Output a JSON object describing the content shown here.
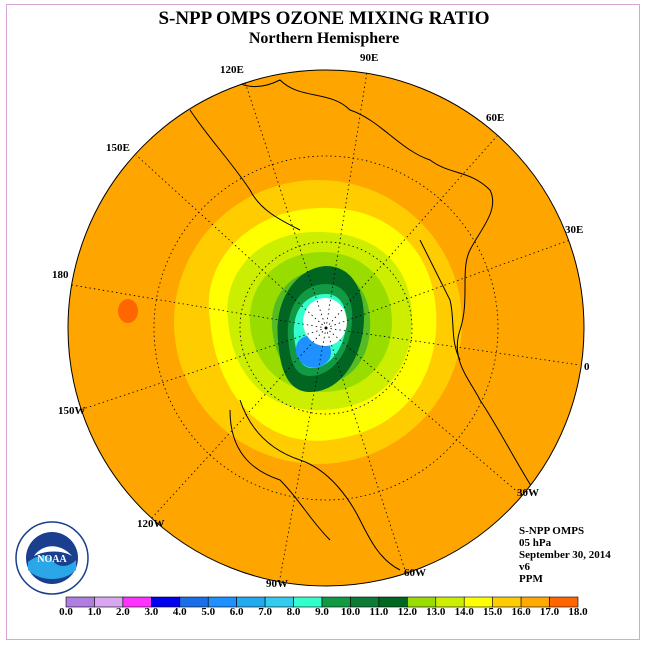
{
  "title": "S-NPP OMPS OZONE MIXING RATIO",
  "subtitle": "Northern Hemisphere",
  "meridian_labels": [
    "90E",
    "60E",
    "30E",
    "0",
    "30W",
    "60W",
    "90W",
    "120W",
    "150W",
    "180",
    "150E",
    "120E"
  ],
  "info": {
    "instrument": "S-NPP OMPS",
    "pressure": "05 hPa",
    "date": "September 30, 2014",
    "version": "v6",
    "units": "PPM"
  },
  "logo_text": "NOAA",
  "colorbar": {
    "ticks": [
      "0.0",
      "1.0",
      "2.0",
      "3.0",
      "4.0",
      "5.0",
      "6.0",
      "7.0",
      "8.0",
      "9.0",
      "10.0",
      "11.0",
      "12.0",
      "13.0",
      "14.0",
      "15.0",
      "16.0",
      "17.0",
      "18.0"
    ],
    "colors": [
      "#b07ee0",
      "#d9a6f0",
      "#ff33ff",
      "#0000ee",
      "#1a6fe8",
      "#1e90ff",
      "#22aaee",
      "#33ccee",
      "#33ffcc",
      "#119944",
      "#0d7a35",
      "#006622",
      "#99dd00",
      "#ccee00",
      "#ffff00",
      "#ffcc00",
      "#ffaa00",
      "#ff6600",
      "#ee0000",
      "#8b5a3c"
    ]
  },
  "colors": {
    "background_field": "#ffa500",
    "land_outline": "#000000",
    "frame": "#d9a6d9"
  }
}
